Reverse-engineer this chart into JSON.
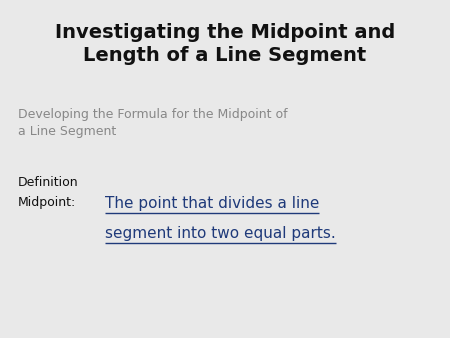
{
  "bg_color": "#e9e9e9",
  "title_line1": "Investigating the Midpoint and",
  "title_line2": "Length of a Line Segment",
  "subtitle": "Developing the Formula for the Midpoint of\na Line Segment",
  "def_label": "Definition",
  "midpoint_label": "Midpoint:",
  "midpoint_text_line1": "The point that divides a line",
  "midpoint_text_line2": "segment into two equal parts.",
  "title_color": "#111111",
  "subtitle_color": "#888888",
  "def_color": "#111111",
  "midpoint_label_color": "#111111",
  "midpoint_text_color": "#1f3a7a",
  "title_fontsize": 14,
  "subtitle_fontsize": 9,
  "def_fontsize": 9,
  "midpoint_label_fontsize": 9,
  "midpoint_text_fontsize": 11
}
